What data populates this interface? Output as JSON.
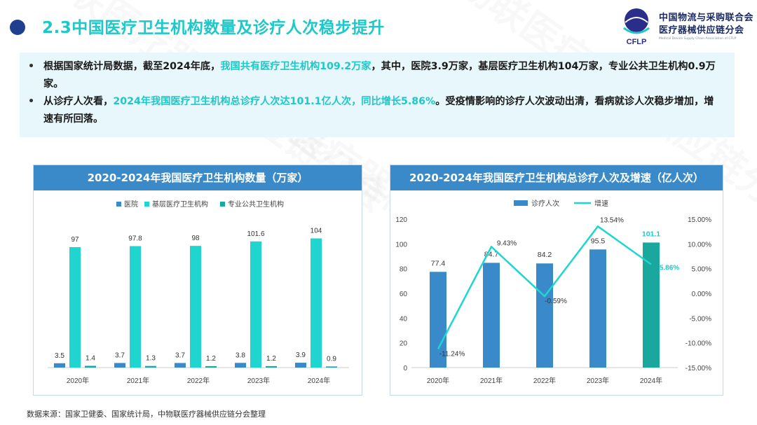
{
  "header": {
    "title": "2.3中国医疗卫生机构数量及诊疗人次稳步提升",
    "logo_name_1": "中国物流与采购联合会",
    "logo_name_2": "医疗器械供应链分会",
    "logo_abbr": "CFLP",
    "logo_sub": "Medical Device Supply Chain Association of CFLP"
  },
  "summary": {
    "b1_pre": "根据国家统计局数据，截至2024年底，",
    "b1_hl": "我国共有医疗卫生机构109.2万家",
    "b1_post": "，其中，医院3.9万家，基层医疗卫生机构104万家，专业公共卫生机构0.9万家。",
    "b2_pre": "从诊疗人次看，",
    "b2_hl": "2024年我国医疗卫生机构总诊疗人次达101.1亿人次，同比增长5.86%",
    "b2_post": "。受疫情影响的诊疗人次波动出清，看病就诊人次稳步增加，增速有所回落。"
  },
  "footer": {
    "source": "数据来源：国家卫健委、国家统计局，中物联医疗器械供应链分会整理"
  },
  "watermark": {
    "text": "中物联医疗器械供应链分会"
  },
  "colors": {
    "accent": "#1ec8c8",
    "dark_blue": "#1f3f8f",
    "bar_blue": "#3a89c9",
    "bar_teal": "#20d4cf",
    "bar_dark_teal": "#18a7a3",
    "highlight_bar": "#1aa79d"
  },
  "chart_data": [
    {
      "type": "bar",
      "title": "2020-2024年我国医疗卫生机构数量（万家）",
      "categories": [
        "2020年",
        "2021年",
        "2022年",
        "2023年",
        "2024年"
      ],
      "series": [
        {
          "name": "医院",
          "values": [
            3.5,
            3.7,
            3.7,
            3.8,
            3.9
          ],
          "color": "#3a89c9"
        },
        {
          "name": "基层医疗卫生机构",
          "values": [
            97,
            97.8,
            98,
            101.6,
            104
          ],
          "color": "#20d4cf"
        },
        {
          "name": "专业公共卫生机构",
          "values": [
            1.4,
            1.3,
            1.2,
            1.2,
            0.9
          ],
          "color": "#18a7a3"
        }
      ],
      "ylim": [
        0,
        115
      ],
      "legend": "top-center"
    },
    {
      "type": "bar+line",
      "title": "2020-2024年我国医疗卫生机构总诊疗人次及增速（亿人次）",
      "categories": [
        "2020年",
        "2021年",
        "2022年",
        "2023年",
        "2024年"
      ],
      "bar_series": {
        "name": "诊疗人次",
        "values": [
          77.4,
          84.7,
          84.2,
          95.5,
          101.1
        ],
        "labels": [
          "77.4",
          "84.7",
          "84.2",
          "95.5",
          "101.1"
        ]
      },
      "line_series": {
        "name": "增速",
        "values": [
          -11.24,
          9.43,
          -0.59,
          13.54,
          5.86
        ],
        "labels": [
          "-11.24%",
          "9.43%",
          "-0.59%",
          "13.54%",
          "5.86%"
        ]
      },
      "y_left": {
        "ticks": [
          "0",
          "20",
          "40",
          "60",
          "80",
          "100",
          "120"
        ],
        "range": [
          0,
          120
        ]
      },
      "y_right": {
        "ticks": [
          "-15.00%",
          "-10.00%",
          "-5.00%",
          "0.00%",
          "5.00%",
          "10.00%",
          "15.00%"
        ],
        "range": [
          -15,
          15
        ]
      },
      "legend": "top-center"
    }
  ]
}
